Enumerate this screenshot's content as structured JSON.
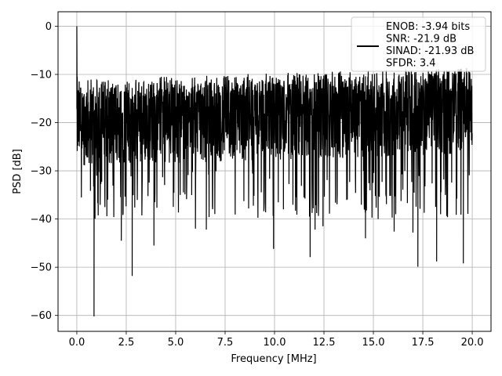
{
  "chart_data": {
    "type": "line",
    "xlabel": "Frequency [MHz]",
    "ylabel": "PSD [dB]",
    "xlim": [
      -0.95,
      20.95
    ],
    "ylim": [
      -63.3,
      3.0
    ],
    "xticks": [
      0.0,
      2.5,
      5.0,
      7.5,
      10.0,
      12.5,
      15.0,
      17.5,
      20.0
    ],
    "xtick_labels": [
      "0.0",
      "2.5",
      "5.0",
      "7.5",
      "10.0",
      "12.5",
      "15.0",
      "17.5",
      "20.0"
    ],
    "yticks": [
      0,
      -10,
      -20,
      -30,
      -40,
      -50,
      -60
    ],
    "ytick_labels": [
      "0",
      "−10",
      "−20",
      "−30",
      "−40",
      "−50",
      "−60"
    ],
    "grid": true,
    "legend_position": "top-right",
    "series": [
      {
        "name": "ENOB: -3.94 bits\nSNR: -21.9 dB\nSINAD: -21.93 dB\nSFDR: 3.4",
        "color": "#000000",
        "x_range": [
          0.0,
          20.0
        ],
        "noise_floor": {
          "low_envelope_db": -28,
          "high_envelope_db": -12,
          "median_db": -20
        },
        "peaks": [
          {
            "x": 0.0,
            "y": 0.0
          },
          {
            "x": 0.02,
            "y": -10.5
          },
          {
            "x": 0.05,
            "y": -13.5
          }
        ],
        "dips": [
          {
            "x": 0.87,
            "y": -60.2
          },
          {
            "x": 2.8,
            "y": -51.8
          },
          {
            "x": 11.8,
            "y": -47.9
          },
          {
            "x": 17.25,
            "y": -49.9
          },
          {
            "x": 18.2,
            "y": -48.8
          },
          {
            "x": 19.55,
            "y": -49.2
          },
          {
            "x": 9.95,
            "y": -46.2
          },
          {
            "x": 14.6,
            "y": -44.0
          },
          {
            "x": 2.25,
            "y": -44.5
          },
          {
            "x": 3.9,
            "y": -45.5
          },
          {
            "x": 6.0,
            "y": -42.0
          },
          {
            "x": 6.55,
            "y": -42.2
          },
          {
            "x": 12.05,
            "y": -42.2
          },
          {
            "x": 12.45,
            "y": -41.5
          },
          {
            "x": 16.05,
            "y": -42.6
          },
          {
            "x": 17.0,
            "y": -42.8
          }
        ]
      }
    ]
  }
}
